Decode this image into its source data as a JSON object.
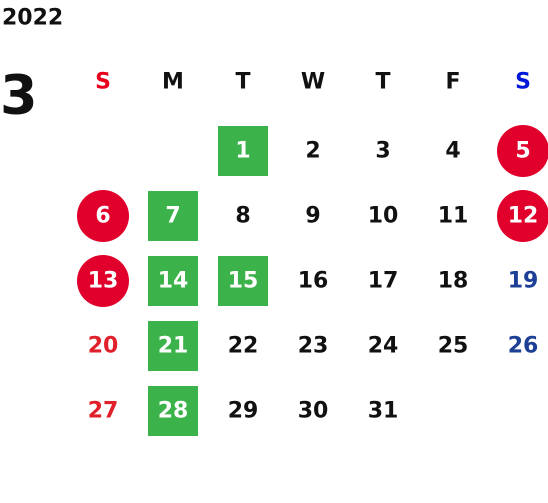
{
  "header": {
    "year": "2022",
    "month": "3"
  },
  "weekdays": [
    "S",
    "M",
    "T",
    "W",
    "T",
    "F",
    "S"
  ],
  "weeks": [
    [
      null,
      null,
      {
        "day": "1",
        "mark": "square"
      },
      {
        "day": "2"
      },
      {
        "day": "3"
      },
      {
        "day": "4"
      },
      {
        "day": "5",
        "mark": "circle"
      }
    ],
    [
      {
        "day": "6",
        "mark": "circle"
      },
      {
        "day": "7",
        "mark": "square"
      },
      {
        "day": "8"
      },
      {
        "day": "9"
      },
      {
        "day": "10"
      },
      {
        "day": "11"
      },
      {
        "day": "12",
        "mark": "circle"
      }
    ],
    [
      {
        "day": "13",
        "mark": "circle"
      },
      {
        "day": "14",
        "mark": "square"
      },
      {
        "day": "15",
        "mark": "square"
      },
      {
        "day": "16"
      },
      {
        "day": "17"
      },
      {
        "day": "18"
      },
      {
        "day": "19"
      }
    ],
    [
      {
        "day": "20"
      },
      {
        "day": "21",
        "mark": "square"
      },
      {
        "day": "22"
      },
      {
        "day": "23"
      },
      {
        "day": "24"
      },
      {
        "day": "25"
      },
      {
        "day": "26"
      }
    ],
    [
      {
        "day": "27"
      },
      {
        "day": "28",
        "mark": "square"
      },
      {
        "day": "29"
      },
      {
        "day": "30"
      },
      {
        "day": "31"
      },
      null,
      null
    ]
  ],
  "colors": {
    "square": "#3cb34a",
    "circle": "#e0002b",
    "sunday": "#e0202a",
    "saturday": "#1d3f96",
    "sunday_header": "#e8001c",
    "saturday_header": "#0018d8",
    "text": "#111111",
    "marked_text": "#ffffff"
  }
}
